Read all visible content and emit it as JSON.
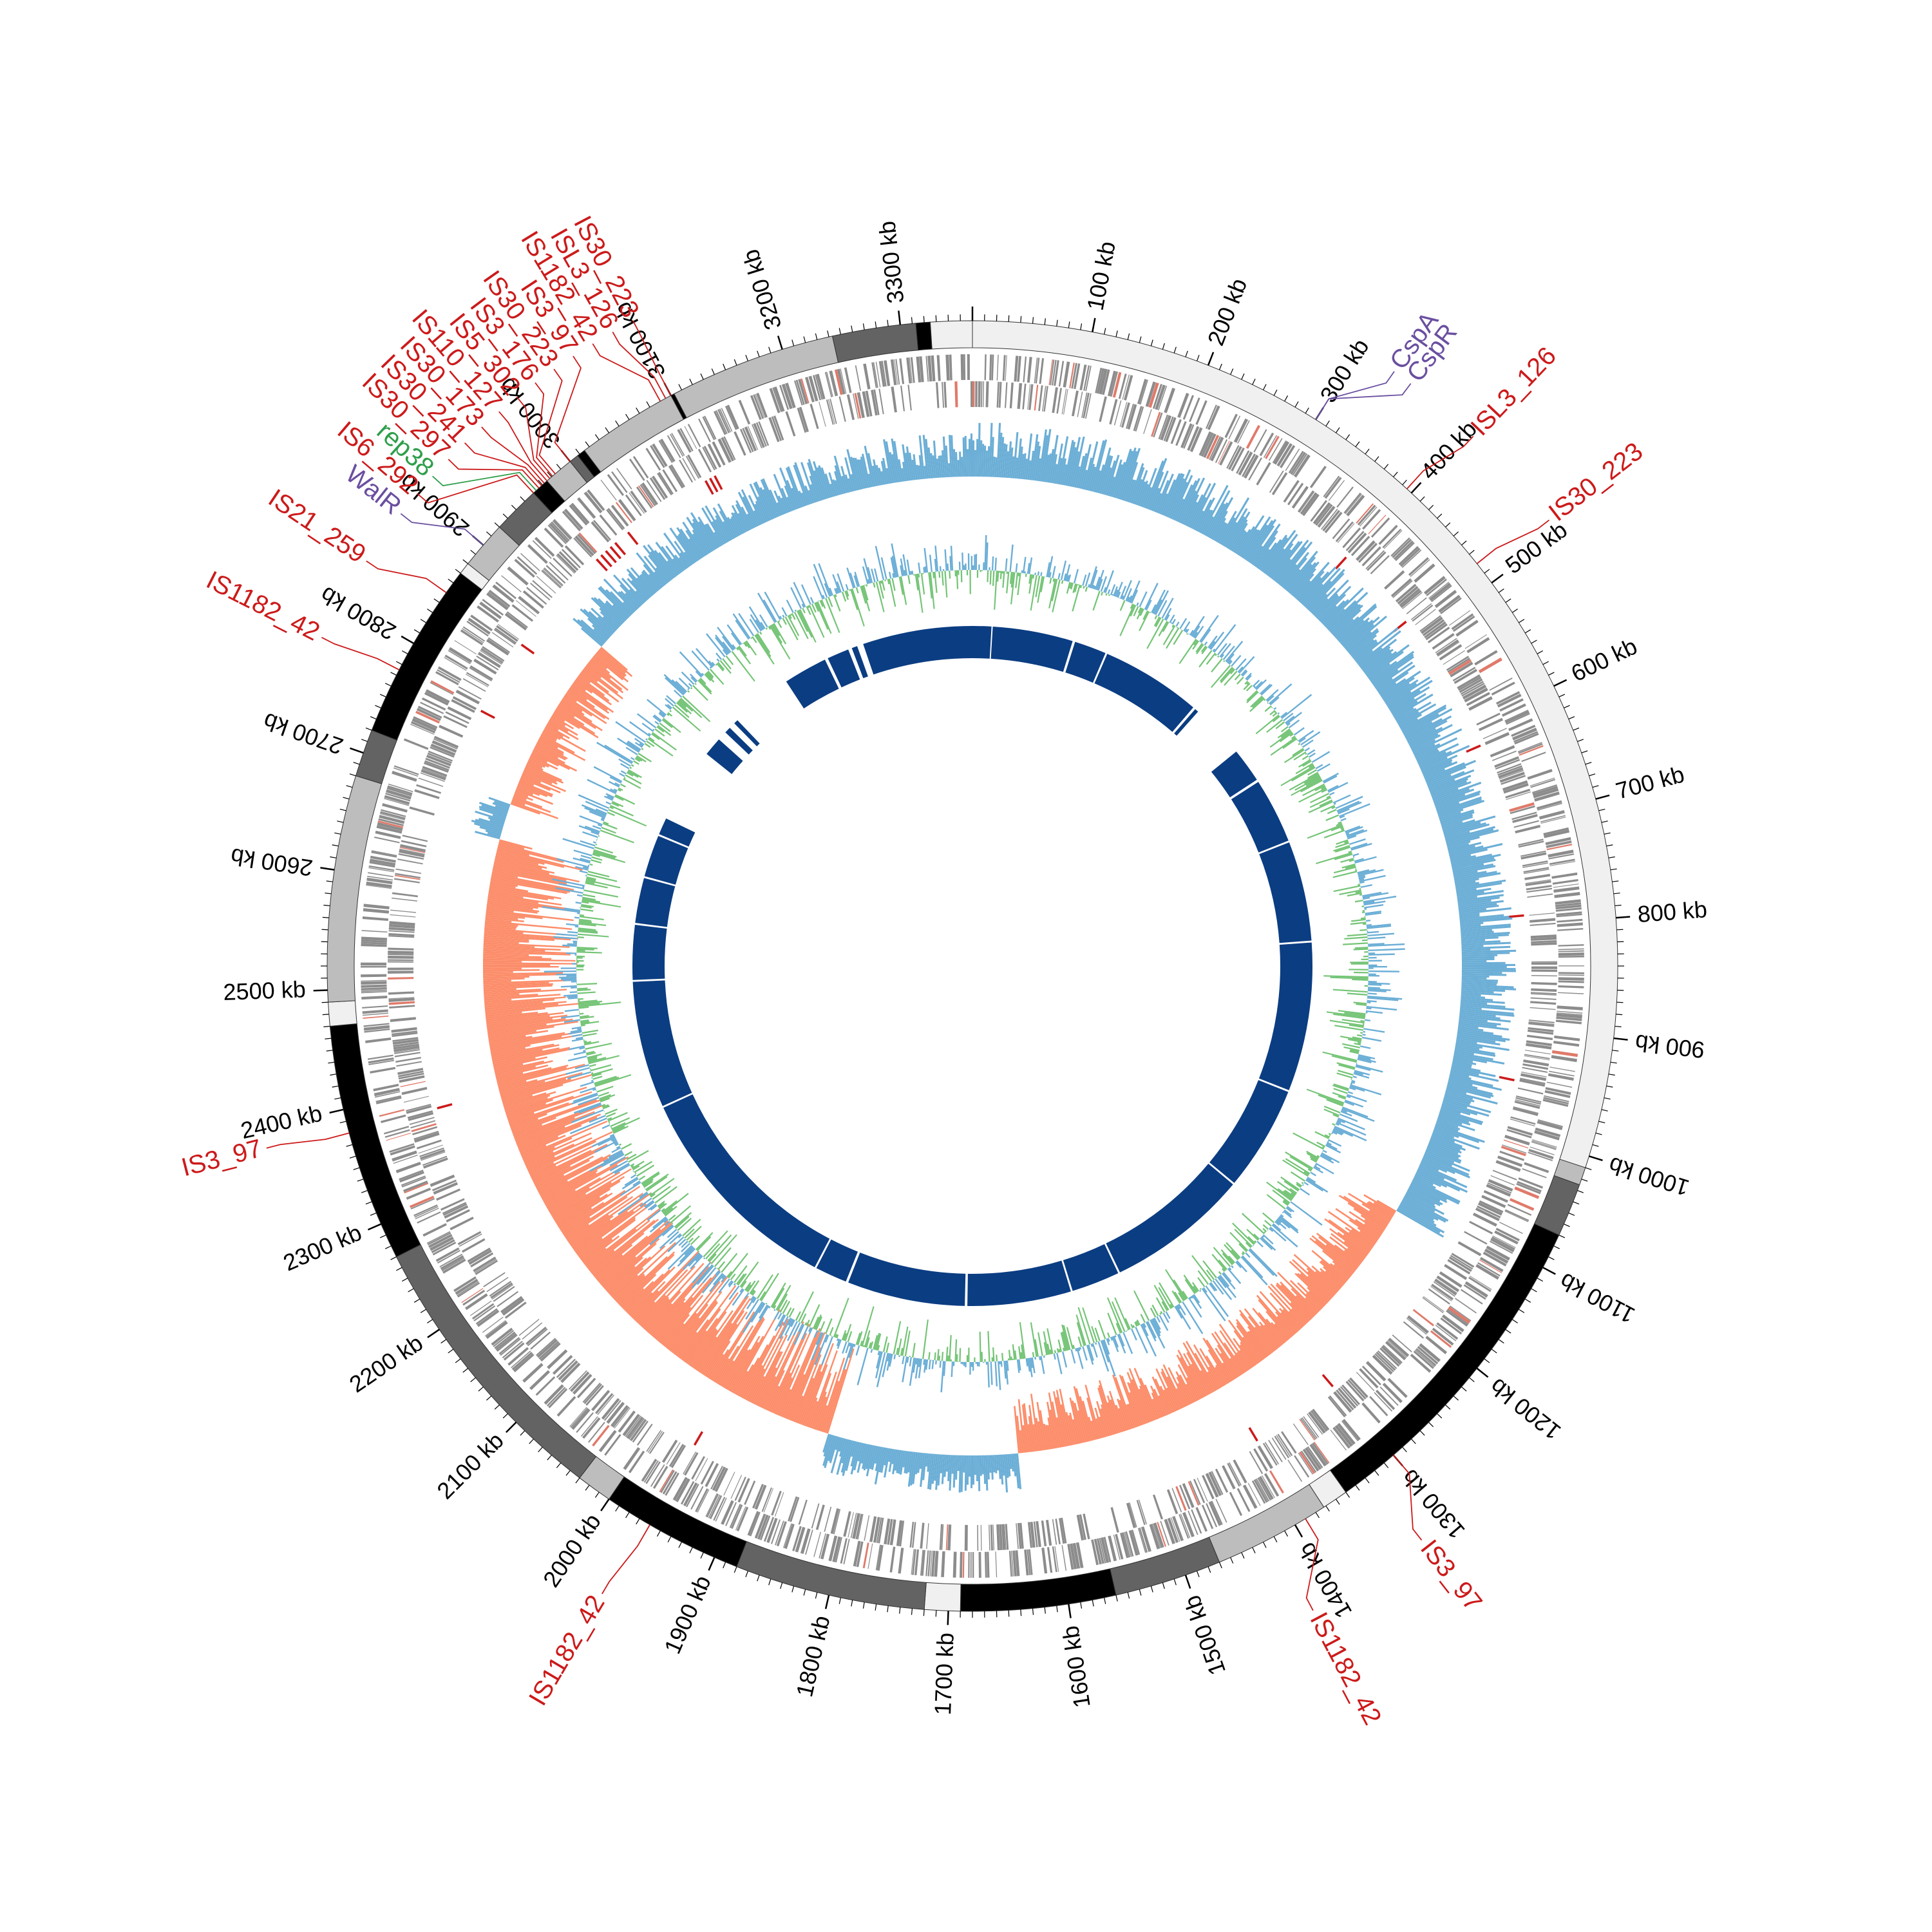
{
  "genome": {
    "length_kb": 3360,
    "tick_interval_kb": 100,
    "tick_labels": [
      "100 kb",
      "200 kb",
      "300 kb",
      "400 kb",
      "500 kb",
      "600 kb",
      "700 kb",
      "800 kb",
      "900 kb",
      "1000 kb",
      "1100 kb",
      "1200 kb",
      "1300 kb",
      "1400 kb",
      "1500 kb",
      "1600 kb",
      "1700 kb",
      "1800 kb",
      "1900 kb",
      "2000 kb",
      "2100 kb",
      "2200 kb",
      "2300 kb",
      "2400 kb",
      "2500 kb",
      "2600 kb",
      "2700 kb",
      "2800 kb",
      "2900 kb",
      "3000 kb",
      "3100 kb",
      "3200 kb",
      "3300 kb"
    ]
  },
  "colors": {
    "is_label": "#cc1a1a",
    "protein_label": "#6a4fa0",
    "rep_label": "#2e9e4a",
    "gc_skew_positive": "#6baed6",
    "gc_skew_negative": "#fc8d6a",
    "gc_content": "#74c476",
    "gene_track": "#8c8c8c",
    "synteny": "#0b3d82",
    "contig_shades": [
      "#f0f0f0",
      "#bdbdbd",
      "#636363",
      "#000000"
    ]
  },
  "contigs": [
    {
      "start": 0,
      "end": 1010,
      "shade": 0
    },
    {
      "start": 1010,
      "end": 1025,
      "shade": 1
    },
    {
      "start": 1025,
      "end": 1070,
      "shade": 2
    },
    {
      "start": 1070,
      "end": 1350,
      "shade": 3
    },
    {
      "start": 1350,
      "end": 1372,
      "shade": 0
    },
    {
      "start": 1372,
      "end": 1470,
      "shade": 1
    },
    {
      "start": 1470,
      "end": 1560,
      "shade": 2
    },
    {
      "start": 1560,
      "end": 1690,
      "shade": 3
    },
    {
      "start": 1690,
      "end": 1720,
      "shade": 0
    },
    {
      "start": 1720,
      "end": 1880,
      "shade": 2
    },
    {
      "start": 1880,
      "end": 2000,
      "shade": 3
    },
    {
      "start": 2000,
      "end": 2030,
      "shade": 1
    },
    {
      "start": 2030,
      "end": 2270,
      "shade": 2
    },
    {
      "start": 2270,
      "end": 2470,
      "shade": 3
    },
    {
      "start": 2470,
      "end": 2490,
      "shade": 0
    },
    {
      "start": 2490,
      "end": 2680,
      "shade": 1
    },
    {
      "start": 2680,
      "end": 2720,
      "shade": 2
    },
    {
      "start": 2720,
      "end": 2870,
      "shade": 3
    },
    {
      "start": 2870,
      "end": 2880,
      "shade": 0
    },
    {
      "start": 2880,
      "end": 2920,
      "shade": 1
    },
    {
      "start": 2920,
      "end": 2960,
      "shade": 2
    },
    {
      "start": 2960,
      "end": 2975,
      "shade": 3
    },
    {
      "start": 2975,
      "end": 3000,
      "shade": 1
    },
    {
      "start": 3000,
      "end": 3008,
      "shade": 2
    },
    {
      "start": 3008,
      "end": 3015,
      "shade": 3
    },
    {
      "start": 3015,
      "end": 3100,
      "shade": 1
    },
    {
      "start": 3100,
      "end": 3103,
      "shade": 3
    },
    {
      "start": 3103,
      "end": 3243,
      "shade": 1
    },
    {
      "start": 3243,
      "end": 3313,
      "shade": 2
    },
    {
      "start": 3313,
      "end": 3325,
      "shade": 3
    },
    {
      "start": 3325,
      "end": 3360,
      "shade": 0
    }
  ],
  "annotations": [
    {
      "label": "CspA",
      "pos": 300,
      "label_pos": 330,
      "kind": "protein"
    },
    {
      "label": "CspR",
      "pos": 300,
      "label_pos": 345,
      "kind": "protein"
    },
    {
      "label": "ISL3_126",
      "pos": 395,
      "label_pos": 405,
      "kind": "is"
    },
    {
      "label": "IS30_223",
      "pos": 480,
      "label_pos": 488,
      "kind": "is"
    },
    {
      "label": "IS3_97",
      "pos": 1300,
      "label_pos": 1325,
      "kind": "is"
    },
    {
      "label": "IS1182_42",
      "pos": 1390,
      "label_pos": 1420,
      "kind": "is"
    },
    {
      "label": "IS1182_42",
      "pos": 1960,
      "label_pos": 1965,
      "kind": "is"
    },
    {
      "label": "IS3_97",
      "pos": 2380,
      "label_pos": 2385,
      "kind": "is"
    },
    {
      "label": "IS1182_42",
      "pos": 2775,
      "label_pos": 2770,
      "kind": "is"
    },
    {
      "label": "IS21_259",
      "pos": 2850,
      "label_pos": 2835,
      "kind": "is"
    },
    {
      "label": "WalR",
      "pos": 2900,
      "label_pos": 2878,
      "kind": "protein"
    },
    {
      "label": "IS6_292",
      "pos": 2960,
      "label_pos": 2897,
      "kind": "is"
    },
    {
      "label": "rep38",
      "pos": 2963,
      "label_pos": 2914,
      "kind": "rep"
    },
    {
      "label": "IS30_297",
      "pos": 2966,
      "label_pos": 2931,
      "kind": "is"
    },
    {
      "label": "IS30_241",
      "pos": 2969,
      "label_pos": 2948,
      "kind": "is"
    },
    {
      "label": "IS30_173",
      "pos": 2972,
      "label_pos": 2965,
      "kind": "is"
    },
    {
      "label": "IS110_127",
      "pos": 2975,
      "label_pos": 2982,
      "kind": "is"
    },
    {
      "label": "IS5_302",
      "pos": 2978,
      "label_pos": 2999,
      "kind": "is"
    },
    {
      "label": "IS3_176",
      "pos": 2981,
      "label_pos": 3016,
      "kind": "is"
    },
    {
      "label": "IS30_223",
      "pos": 2984,
      "label_pos": 3033,
      "kind": "is"
    },
    {
      "label": "IS3_97",
      "pos": 3000,
      "label_pos": 3050,
      "kind": "is"
    },
    {
      "label": "IS1182_42",
      "pos": 3090,
      "label_pos": 3067,
      "kind": "is"
    },
    {
      "label": "ISL3_126",
      "pos": 3095,
      "label_pos": 3084,
      "kind": "is"
    },
    {
      "label": "IS30_223",
      "pos": 3100,
      "label_pos": 3101,
      "kind": "is"
    }
  ],
  "is_feature_positions_kb": [
    395,
    480,
    620,
    790,
    950,
    1300,
    1390,
    1960,
    2380,
    2775,
    2850,
    2960,
    2966,
    2972,
    2978,
    2984,
    3000,
    3090,
    3095,
    3100
  ],
  "synteny_blocks": [
    {
      "start": 0,
      "end": 30
    },
    {
      "start": 32,
      "end": 160
    },
    {
      "start": 164,
      "end": 215
    },
    {
      "start": 218,
      "end": 378
    },
    {
      "start": 382,
      "end": 388
    },
    {
      "start": 475,
      "end": 530
    },
    {
      "start": 534,
      "end": 638
    },
    {
      "start": 641,
      "end": 800
    },
    {
      "start": 803,
      "end": 1040
    },
    {
      "start": 1043,
      "end": 1210
    },
    {
      "start": 1213,
      "end": 1440
    },
    {
      "start": 1443,
      "end": 1520
    },
    {
      "start": 1523,
      "end": 1688
    },
    {
      "start": 1692,
      "end": 1880
    },
    {
      "start": 1884,
      "end": 1935
    },
    {
      "start": 1938,
      "end": 2290
    },
    {
      "start": 2293,
      "end": 2495
    },
    {
      "start": 2498,
      "end": 2585
    },
    {
      "start": 2588,
      "end": 2660
    },
    {
      "start": 2663,
      "end": 2730
    },
    {
      "start": 2733,
      "end": 2760
    },
    {
      "start": 2880,
      "end": 2910
    },
    {
      "start": 2925,
      "end": 2935
    },
    {
      "start": 2945,
      "end": 2952
    },
    {
      "start": 3050,
      "end": 3120
    },
    {
      "start": 3125,
      "end": 3160
    },
    {
      "start": 3166,
      "end": 3175
    },
    {
      "start": 3185,
      "end": 3360
    }
  ]
}
